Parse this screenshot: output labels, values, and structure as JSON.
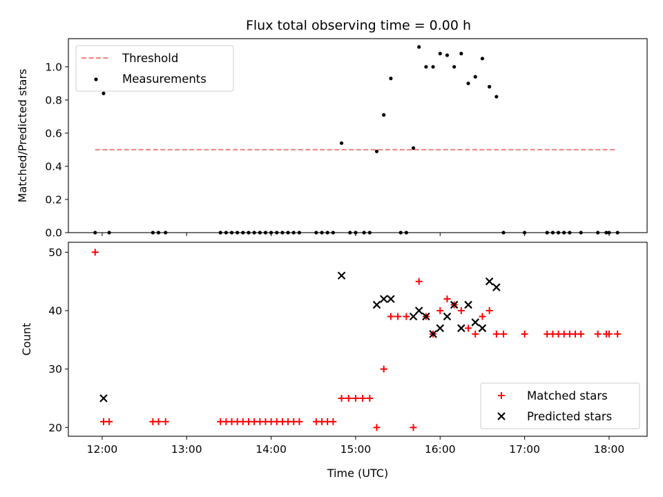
{
  "title": "Flux total observing time = 0.00 h",
  "chart_data": [
    {
      "type": "scatter",
      "ylabel": "Matched/Predicted stars",
      "ylim": [
        0,
        1.17
      ],
      "xlim": [
        "11:36",
        "18:27"
      ],
      "yticks": [
        0.0,
        0.2,
        0.4,
        0.6,
        0.8,
        1.0
      ],
      "ytick_labels": [
        "0.0",
        "0.2",
        "0.4",
        "0.6",
        "0.8",
        "1.0"
      ],
      "legend_position": "upper-left",
      "threshold": {
        "name": "Threshold",
        "value": 0.5,
        "x_range": [
          "11:55",
          "18:05"
        ],
        "color": "#f08080"
      },
      "series": [
        {
          "name": "Measurements",
          "color": "#000000",
          "points": [
            [
              "11:55",
              0
            ],
            [
              "12:01",
              0.84
            ],
            [
              "12:05",
              0
            ],
            [
              "12:36",
              0
            ],
            [
              "12:40",
              0
            ],
            [
              "12:45",
              0
            ],
            [
              "13:24",
              0
            ],
            [
              "13:28",
              0
            ],
            [
              "13:32",
              0
            ],
            [
              "13:36",
              0
            ],
            [
              "13:40",
              0
            ],
            [
              "13:44",
              0
            ],
            [
              "13:48",
              0
            ],
            [
              "13:52",
              0
            ],
            [
              "13:56",
              0
            ],
            [
              "14:00",
              0
            ],
            [
              "14:04",
              0
            ],
            [
              "14:08",
              0
            ],
            [
              "14:12",
              0
            ],
            [
              "14:16",
              0
            ],
            [
              "14:20",
              0
            ],
            [
              "14:32",
              0
            ],
            [
              "14:36",
              0
            ],
            [
              "14:40",
              0
            ],
            [
              "14:44",
              0
            ],
            [
              "14:50",
              0.54
            ],
            [
              "14:56",
              0
            ],
            [
              "15:00",
              0
            ],
            [
              "15:06",
              0
            ],
            [
              "15:10",
              0
            ],
            [
              "15:15",
              0.49
            ],
            [
              "15:20",
              0.71
            ],
            [
              "15:25",
              0.93
            ],
            [
              "15:32",
              0
            ],
            [
              "15:36",
              0
            ],
            [
              "15:41",
              0.51
            ],
            [
              "15:45",
              1.12
            ],
            [
              "15:50",
              1.0
            ],
            [
              "15:55",
              1.0
            ],
            [
              "16:00",
              1.08
            ],
            [
              "16:05",
              1.07
            ],
            [
              "16:10",
              1.0
            ],
            [
              "16:15",
              1.08
            ],
            [
              "16:20",
              0.9
            ],
            [
              "16:25",
              0.94
            ],
            [
              "16:30",
              1.05
            ],
            [
              "16:35",
              0.88
            ],
            [
              "16:40",
              0.82
            ],
            [
              "16:45",
              0
            ],
            [
              "17:00",
              0
            ],
            [
              "17:16",
              0
            ],
            [
              "17:20",
              0
            ],
            [
              "17:24",
              0
            ],
            [
              "17:28",
              0
            ],
            [
              "17:32",
              0
            ],
            [
              "17:40",
              0
            ],
            [
              "17:52",
              0
            ],
            [
              "17:58",
              0
            ],
            [
              "18:00",
              0
            ],
            [
              "18:06",
              0
            ]
          ]
        }
      ]
    },
    {
      "type": "scatter",
      "xlabel": "Time (UTC)",
      "ylabel": "Count",
      "ylim": [
        18.5,
        51.7
      ],
      "xlim": [
        "11:36",
        "18:27"
      ],
      "yticks": [
        20,
        30,
        40,
        50
      ],
      "ytick_labels": [
        "20",
        "30",
        "40",
        "50"
      ],
      "xticks": [
        "12:00",
        "13:00",
        "14:00",
        "15:00",
        "16:00",
        "17:00",
        "18:00"
      ],
      "legend_position": "lower-right",
      "series": [
        {
          "name": "Matched stars",
          "marker": "+",
          "color": "#ff0000",
          "points": [
            [
              "11:55",
              50
            ],
            [
              "12:01",
              21
            ],
            [
              "12:05",
              21
            ],
            [
              "12:36",
              21
            ],
            [
              "12:40",
              21
            ],
            [
              "12:45",
              21
            ],
            [
              "13:24",
              21
            ],
            [
              "13:28",
              21
            ],
            [
              "13:32",
              21
            ],
            [
              "13:36",
              21
            ],
            [
              "13:40",
              21
            ],
            [
              "13:44",
              21
            ],
            [
              "13:48",
              21
            ],
            [
              "13:52",
              21
            ],
            [
              "13:56",
              21
            ],
            [
              "14:00",
              21
            ],
            [
              "14:04",
              21
            ],
            [
              "14:08",
              21
            ],
            [
              "14:12",
              21
            ],
            [
              "14:16",
              21
            ],
            [
              "14:20",
              21
            ],
            [
              "14:32",
              21
            ],
            [
              "14:36",
              21
            ],
            [
              "14:40",
              21
            ],
            [
              "14:44",
              21
            ],
            [
              "14:50",
              25
            ],
            [
              "14:55",
              25
            ],
            [
              "15:00",
              25
            ],
            [
              "15:05",
              25
            ],
            [
              "15:10",
              25
            ],
            [
              "15:15",
              20
            ],
            [
              "15:20",
              30
            ],
            [
              "15:25",
              39
            ],
            [
              "15:30",
              39
            ],
            [
              "15:36",
              39
            ],
            [
              "15:41",
              20
            ],
            [
              "15:45",
              45
            ],
            [
              "15:50",
              39
            ],
            [
              "15:55",
              36
            ],
            [
              "16:00",
              40
            ],
            [
              "16:05",
              42
            ],
            [
              "16:10",
              41
            ],
            [
              "16:15",
              40
            ],
            [
              "16:20",
              37
            ],
            [
              "16:25",
              36
            ],
            [
              "16:30",
              39
            ],
            [
              "16:35",
              40
            ],
            [
              "16:40",
              36
            ],
            [
              "16:45",
              36
            ],
            [
              "17:00",
              36
            ],
            [
              "17:16",
              36
            ],
            [
              "17:20",
              36
            ],
            [
              "17:24",
              36
            ],
            [
              "17:28",
              36
            ],
            [
              "17:32",
              36
            ],
            [
              "17:36",
              36
            ],
            [
              "17:40",
              36
            ],
            [
              "17:52",
              36
            ],
            [
              "17:58",
              36
            ],
            [
              "18:00",
              36
            ],
            [
              "18:06",
              36
            ]
          ]
        },
        {
          "name": "Predicted stars",
          "marker": "x",
          "color": "#000000",
          "points": [
            [
              "12:01",
              25
            ],
            [
              "14:50",
              46
            ],
            [
              "15:15",
              41
            ],
            [
              "15:20",
              42
            ],
            [
              "15:25",
              42
            ],
            [
              "15:41",
              39
            ],
            [
              "15:45",
              40
            ],
            [
              "15:50",
              39
            ],
            [
              "15:55",
              36
            ],
            [
              "16:00",
              37
            ],
            [
              "16:05",
              39
            ],
            [
              "16:10",
              41
            ],
            [
              "16:15",
              37
            ],
            [
              "16:20",
              41
            ],
            [
              "16:25",
              38
            ],
            [
              "16:30",
              37
            ],
            [
              "16:35",
              45
            ],
            [
              "16:40",
              44
            ]
          ]
        }
      ]
    }
  ]
}
